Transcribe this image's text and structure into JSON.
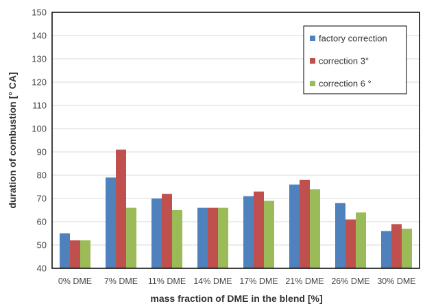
{
  "chart_data": {
    "type": "bar",
    "xlabel": "mass fraction of DME in the blend [%]",
    "ylabel": "duration of combustion  [° CA]",
    "ylim": [
      40,
      150
    ],
    "yticks": [
      40,
      50,
      60,
      70,
      80,
      90,
      100,
      110,
      120,
      130,
      140,
      150
    ],
    "grid": true,
    "legend_position": "top-right",
    "categories": [
      "0% DME",
      "7% DME",
      "11% DME",
      "14% DME",
      "17% DME",
      "21% DME",
      "26% DME",
      "30% DME"
    ],
    "series": [
      {
        "name": "factory correction",
        "color": "#4f81bd",
        "values": [
          55,
          79,
          70,
          66,
          71,
          76,
          68,
          56
        ]
      },
      {
        "name": "correction 3°",
        "color": "#c0504d",
        "values": [
          52,
          91,
          72,
          66,
          73,
          78,
          61,
          59
        ]
      },
      {
        "name": "correction 6 °",
        "color": "#9bbb59",
        "values": [
          52,
          66,
          65,
          66,
          69,
          74,
          64,
          57
        ]
      }
    ]
  }
}
